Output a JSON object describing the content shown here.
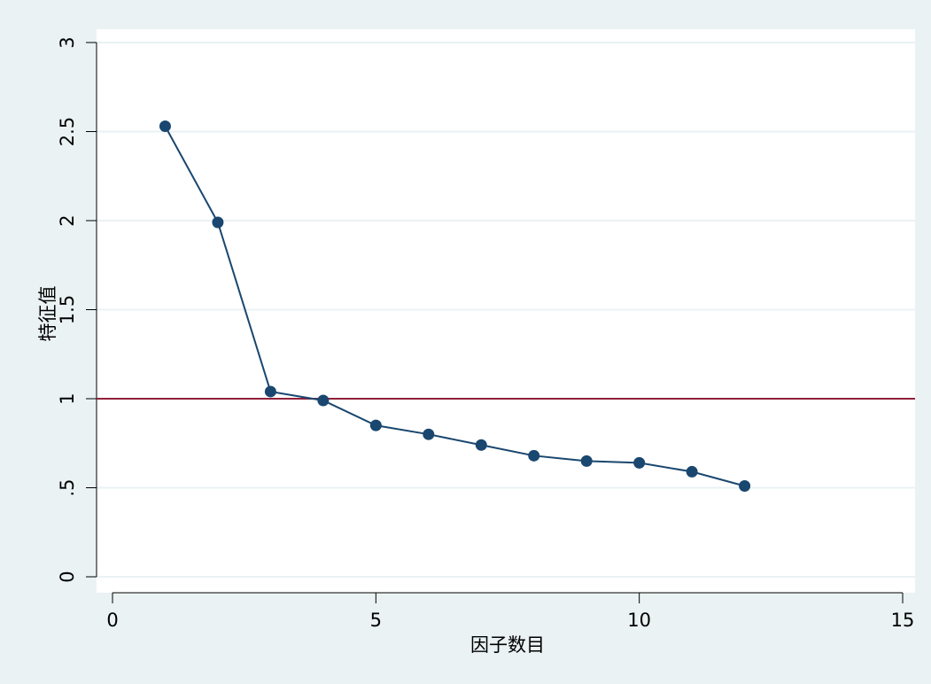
{
  "chart_data": {
    "type": "line",
    "title": "",
    "xlabel": "因子数目",
    "ylabel": "特征值",
    "xlim": [
      0,
      15
    ],
    "ylim": [
      0,
      3
    ],
    "xticks": [
      0,
      5,
      10,
      15
    ],
    "yticks": [
      0,
      0.5,
      1,
      1.5,
      2,
      2.5,
      3
    ],
    "xtick_labels": [
      "0",
      "5",
      "10",
      "15"
    ],
    "ytick_labels": [
      "0",
      ".5",
      "1",
      "1.5",
      "2",
      "2.5",
      "3"
    ],
    "grid": "horizontal",
    "series": [
      {
        "x": [
          1,
          2,
          3,
          4,
          5,
          6,
          7,
          8,
          9,
          10,
          11,
          12
        ],
        "values": [
          2.53,
          1.99,
          1.04,
          0.99,
          0.85,
          0.8,
          0.74,
          0.68,
          0.65,
          0.64,
          0.59,
          0.51
        ]
      }
    ],
    "reference_line": {
      "y": 1
    },
    "colors": {
      "plot_bg": "#ffffff",
      "outer_bg": "#eaf2f3",
      "series": "#1a476f",
      "reference": "#90203a",
      "grid": "#eaf2f3"
    }
  }
}
